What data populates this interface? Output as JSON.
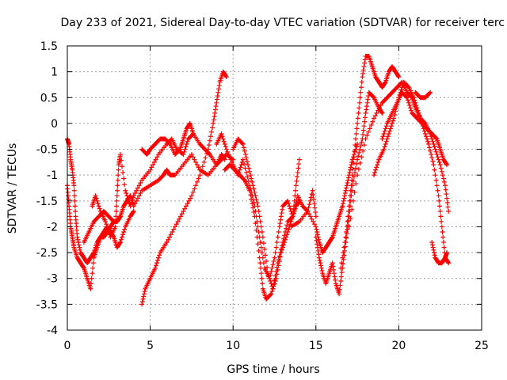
{
  "chart_data": {
    "type": "scatter",
    "title": "Day 233 of 2021, Sidereal Day-to-day VTEC variation (SDTVAR) for receiver terc",
    "xlabel": "GPS time / hours",
    "ylabel": "SDTVAR / TECUs",
    "xlim": [
      0,
      25
    ],
    "ylim": [
      -4,
      1.5
    ],
    "xticks": [
      "0",
      "5",
      "10",
      "15",
      "20",
      "25"
    ],
    "yticks": [
      "-4",
      "-3.5",
      "-3",
      "-2.5",
      "-2",
      "-1.5",
      "-1",
      "-0.5",
      "0",
      "0.5",
      "1",
      "1.5"
    ],
    "grid": true,
    "marker": "+",
    "color": "#ff0000",
    "series": [
      {
        "x": [
          0.0,
          0.1,
          0.2,
          0.3,
          0.4,
          0.5,
          0.6,
          0.8,
          1.0,
          1.2,
          1.4,
          1.6,
          1.8,
          2.0,
          2.2,
          2.4,
          2.6,
          2.8,
          3.0,
          3.2
        ],
        "y": [
          -0.3,
          -0.4,
          -0.7,
          -0.9,
          -1.2,
          -1.8,
          -2.2,
          -2.5,
          -2.6,
          -2.7,
          -2.6,
          -2.5,
          -2.3,
          -2.2,
          -2.2,
          -2.1,
          -2.0,
          -1.9,
          -1.9,
          -1.8
        ]
      },
      {
        "x": [
          0.0,
          0.1,
          0.2,
          0.3,
          0.4,
          0.6,
          0.8,
          1.0,
          1.2,
          1.4,
          1.6,
          1.8,
          2.0,
          2.2,
          2.4,
          2.6,
          2.8,
          3.0,
          3.2,
          3.5,
          3.8,
          4.0
        ],
        "y": [
          -1.2,
          -1.6,
          -2.0,
          -2.2,
          -2.4,
          -2.6,
          -2.7,
          -2.8,
          -3.0,
          -3.2,
          -2.6,
          -2.4,
          -2.2,
          -2.1,
          -2.0,
          -2.1,
          -2.2,
          -2.4,
          -2.3,
          -2.0,
          -1.8,
          -1.7
        ]
      },
      {
        "x": [
          1.0,
          1.3,
          1.6,
          1.9,
          2.2,
          2.5,
          2.8,
          3.0,
          3.2,
          3.4,
          3.6,
          3.8,
          4.0,
          4.5,
          5.0,
          5.5,
          5.8,
          6.0,
          6.2,
          6.5,
          7.0,
          7.5,
          8.0,
          8.5,
          9.0,
          9.3,
          9.5
        ],
        "y": [
          -2.3,
          -2.1,
          -1.9,
          -1.8,
          -1.7,
          -1.8,
          -1.9,
          -1.9,
          -1.8,
          -1.6,
          -1.5,
          -1.4,
          -1.6,
          -1.3,
          -1.2,
          -1.1,
          -1.0,
          -0.9,
          -1.0,
          -1.0,
          -0.8,
          -0.6,
          -0.9,
          -1.0,
          -0.8,
          -0.6,
          -0.7
        ]
      },
      {
        "x": [
          1.5,
          1.7,
          2.0,
          2.3,
          2.6,
          2.9,
          3.0,
          3.1,
          3.2,
          3.5,
          3.8,
          4.0,
          4.5,
          5.0,
          5.5,
          6.0,
          6.3,
          6.6,
          7.0,
          7.3,
          7.6,
          8.0,
          8.3,
          8.6,
          9.0,
          9.3,
          9.6,
          10.0
        ],
        "y": [
          -1.6,
          -1.4,
          -1.7,
          -1.9,
          -2.2,
          -2.0,
          -1.4,
          -0.8,
          -0.6,
          -1.3,
          -1.6,
          -1.4,
          -1.1,
          -0.9,
          -0.6,
          -0.4,
          -0.3,
          -0.5,
          -0.6,
          -0.3,
          -0.2,
          -0.4,
          -0.5,
          -0.6,
          -0.8,
          -0.7,
          -0.6,
          -0.7
        ]
      },
      {
        "x": [
          4.5,
          4.8,
          5.0,
          5.3,
          5.6,
          5.9,
          6.2,
          6.5,
          6.8,
          7.0,
          7.2,
          7.4,
          7.6
        ],
        "y": [
          -0.5,
          -0.6,
          -0.5,
          -0.4,
          -0.3,
          -0.3,
          -0.4,
          -0.6,
          -0.5,
          -0.3,
          -0.1,
          0.0,
          -0.2
        ]
      },
      {
        "x": [
          4.5,
          4.7,
          5.0,
          5.3,
          5.6,
          6.0,
          6.5,
          7.0,
          7.5,
          8.0,
          8.5,
          8.8,
          9.0,
          9.2,
          9.4,
          9.6
        ],
        "y": [
          -3.5,
          -3.2,
          -3.0,
          -2.8,
          -2.5,
          -2.3,
          -2.0,
          -1.7,
          -1.4,
          -1.0,
          -0.5,
          0.0,
          0.4,
          0.8,
          1.0,
          0.9
        ]
      },
      {
        "x": [
          9.0,
          9.3,
          9.6,
          10.0,
          10.3,
          10.6,
          11.0,
          11.3,
          11.6,
          11.9,
          12.2,
          12.5,
          12.8,
          13.0,
          13.3,
          13.6,
          13.9,
          14.2,
          14.5,
          14.8,
          15.0
        ],
        "y": [
          -0.4,
          -0.2,
          -0.5,
          -0.8,
          -1.0,
          -0.7,
          -1.2,
          -1.6,
          -2.2,
          -2.8,
          -3.0,
          -2.6,
          -2.0,
          -1.6,
          -1.5,
          -1.8,
          -1.4,
          -1.6,
          -1.7,
          -1.3,
          -1.8
        ]
      },
      {
        "x": [
          9.5,
          9.8,
          10.1,
          10.4,
          10.7,
          11.0,
          11.3,
          11.6,
          11.8,
          12.0,
          12.3,
          12.6,
          12.9,
          13.2,
          13.5,
          13.8,
          14.0
        ],
        "y": [
          -0.9,
          -0.8,
          -0.9,
          -1.0,
          -1.1,
          -1.3,
          -1.8,
          -2.6,
          -3.2,
          -3.4,
          -3.3,
          -3.0,
          -2.5,
          -2.2,
          -1.9,
          -1.6,
          -1.5
        ]
      },
      {
        "x": [
          10.0,
          10.3,
          10.6,
          10.9,
          11.2,
          11.5,
          11.8,
          12.1,
          12.4,
          12.7,
          13.0,
          13.3,
          13.6,
          13.8,
          14.0
        ],
        "y": [
          -0.5,
          -0.3,
          -0.4,
          -0.8,
          -1.2,
          -1.6,
          -2.2,
          -2.9,
          -3.2,
          -2.7,
          -2.3,
          -1.9,
          -1.8,
          -1.2,
          -0.7
        ]
      },
      {
        "x": [
          13.5,
          14.0,
          14.5,
          15.0,
          15.2,
          15.4,
          15.6,
          15.8,
          16.0,
          16.2,
          16.4,
          16.6,
          16.8,
          17.0,
          17.2,
          17.5
        ],
        "y": [
          -2.0,
          -1.9,
          -1.7,
          -2.0,
          -2.3,
          -2.5,
          -2.4,
          -2.3,
          -2.2,
          -2.0,
          -1.8,
          -1.6,
          -1.3,
          -1.0,
          -0.7,
          -0.4
        ]
      },
      {
        "x": [
          15.0,
          15.2,
          15.4,
          15.6,
          15.8,
          16.0,
          16.2,
          16.4,
          16.6,
          16.8,
          17.0,
          17.2,
          17.5,
          17.8,
          18.0,
          18.2,
          18.5,
          18.8,
          19.0
        ],
        "y": [
          -2.2,
          -2.6,
          -2.9,
          -3.1,
          -2.9,
          -2.7,
          -3.1,
          -3.3,
          -2.8,
          -2.3,
          -1.8,
          -1.2,
          -0.7,
          -0.3,
          0.2,
          0.6,
          0.5,
          0.3,
          0.2
        ]
      },
      {
        "x": [
          16.5,
          16.8,
          17.0,
          17.2,
          17.4,
          17.6,
          17.8,
          18.0,
          18.2,
          18.4,
          18.6,
          18.8,
          19.0,
          19.2,
          19.4,
          19.6,
          19.8,
          20.0
        ],
        "y": [
          -2.8,
          -2.2,
          -1.6,
          -1.0,
          -0.3,
          0.3,
          0.9,
          1.3,
          1.3,
          1.1,
          0.9,
          0.8,
          0.7,
          0.8,
          1.0,
          1.1,
          1.0,
          0.9
        ]
      },
      {
        "x": [
          17.0,
          17.5,
          18.0,
          18.5,
          19.0,
          19.3,
          19.6,
          19.9,
          20.2,
          20.5,
          20.8,
          21.0,
          21.3,
          21.6,
          21.9,
          22.2,
          22.5,
          22.8,
          23.0
        ],
        "y": [
          -2.0,
          -1.0,
          -0.3,
          0.1,
          0.4,
          0.5,
          0.6,
          0.7,
          0.8,
          0.6,
          0.5,
          0.3,
          0.1,
          0.0,
          -0.2,
          -0.5,
          -0.8,
          -1.2,
          -1.7
        ]
      },
      {
        "x": [
          18.5,
          18.8,
          19.1,
          19.4,
          19.7,
          20.0,
          20.3,
          20.6,
          20.9,
          21.2,
          21.5,
          21.8,
          22.1,
          22.4,
          22.6,
          22.8,
          23.0
        ],
        "y": [
          -1.0,
          -0.7,
          -0.5,
          -0.2,
          0.1,
          0.5,
          0.8,
          0.7,
          0.5,
          0.2,
          -0.1,
          -0.4,
          -0.8,
          -1.4,
          -2.0,
          -2.6,
          -2.7
        ]
      },
      {
        "x": [
          19.0,
          19.3,
          19.6,
          19.9,
          20.2,
          20.5,
          20.8,
          21.1,
          21.4,
          21.7,
          22.0,
          22.3,
          22.5,
          22.7,
          22.9
        ],
        "y": [
          -0.3,
          0.0,
          0.2,
          0.4,
          0.6,
          0.5,
          0.2,
          0.1,
          0.0,
          -0.1,
          -0.2,
          -0.3,
          -0.5,
          -0.7,
          -0.8
        ]
      },
      {
        "x": [
          21.0,
          21.3,
          21.6,
          21.9
        ],
        "y": [
          0.6,
          0.5,
          0.5,
          0.6
        ]
      },
      {
        "x": [
          22.0,
          22.2,
          22.4,
          22.6,
          22.8,
          22.9
        ],
        "y": [
          -2.3,
          -2.6,
          -2.7,
          -2.7,
          -2.6,
          -2.5
        ]
      }
    ]
  }
}
